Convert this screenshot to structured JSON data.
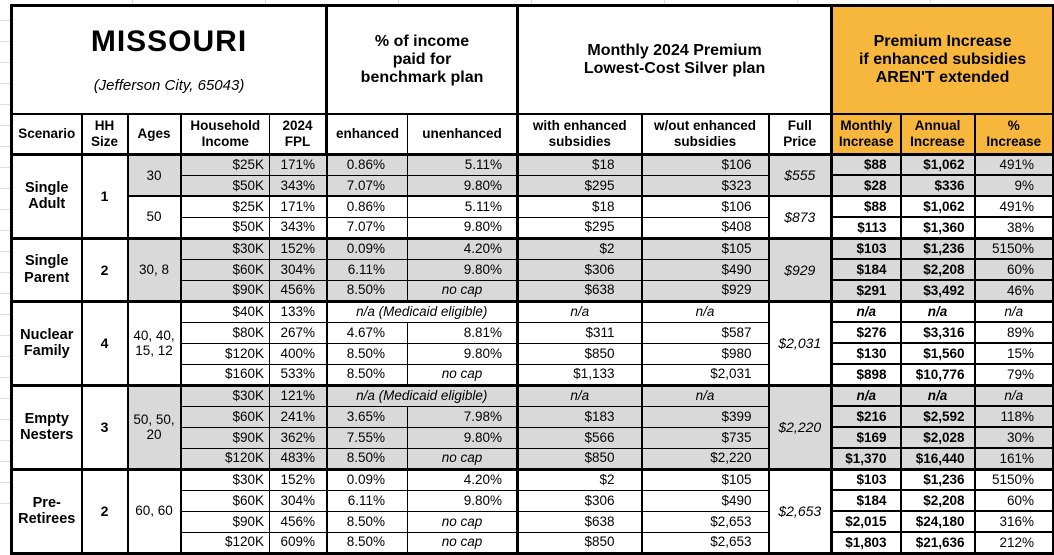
{
  "title": {
    "state": "MISSOURI",
    "location": "(Jefferson City, 65043)"
  },
  "colors": {
    "accent_orange": "#F6B73C",
    "row_shade": "#D9D9D9",
    "border": "#000000"
  },
  "sections": {
    "benchmark": "% of income\npaid for\nbenchmark plan",
    "premium": "Monthly 2024 Premium\nLowest-Cost Silver plan",
    "increase": "Premium Increase\nif enhanced subsidies\nAREN'T extended"
  },
  "columns": {
    "scenario": "Scenario",
    "hh_size": "HH\nSize",
    "ages": "Ages",
    "income": "Household\nIncome",
    "fpl": "2024\nFPL",
    "enhanced": "enhanced",
    "unenhanced": "unenhanced",
    "with_sub": "with enhanced\nsubsidies",
    "wout_sub": "w/out enhanced\nsubsidies",
    "full_price": "Full\nPrice",
    "monthly": "Monthly\nIncrease",
    "annual": "Annual\nIncrease",
    "pct": "%\nIncrease"
  },
  "chart_data": {
    "type": "table",
    "title": "Missouri (Jefferson City, 65043) — 2024 Marketplace premiums and increases if enhanced subsidies aren't extended",
    "groups": [
      {
        "scenario": "Single\nAdult",
        "hh_size": "1",
        "age_groups": [
          {
            "ages": "30",
            "shaded": true,
            "full_price": "$555",
            "rows": [
              {
                "income": "$25K",
                "fpl": "171%",
                "enhanced": "0.86%",
                "unenhanced": "5.11%",
                "with_sub": "$18",
                "wout_sub": "$106",
                "monthly": "$88",
                "annual": "$1,062",
                "pct": "491%"
              },
              {
                "income": "$50K",
                "fpl": "343%",
                "enhanced": "7.07%",
                "unenhanced": "9.80%",
                "with_sub": "$295",
                "wout_sub": "$323",
                "monthly": "$28",
                "annual": "$336",
                "pct": "9%"
              }
            ]
          },
          {
            "ages": "50",
            "shaded": false,
            "full_price": "$873",
            "rows": [
              {
                "income": "$25K",
                "fpl": "171%",
                "enhanced": "0.86%",
                "unenhanced": "5.11%",
                "with_sub": "$18",
                "wout_sub": "$106",
                "monthly": "$88",
                "annual": "$1,062",
                "pct": "491%"
              },
              {
                "income": "$50K",
                "fpl": "343%",
                "enhanced": "7.07%",
                "unenhanced": "9.80%",
                "with_sub": "$295",
                "wout_sub": "$408",
                "monthly": "$113",
                "annual": "$1,360",
                "pct": "38%"
              }
            ]
          }
        ]
      },
      {
        "scenario": "Single\nParent",
        "hh_size": "2",
        "age_groups": [
          {
            "ages": "30, 8",
            "shaded": true,
            "full_price": "$929",
            "rows": [
              {
                "income": "$30K",
                "fpl": "152%",
                "enhanced": "0.09%",
                "unenhanced": "4.20%",
                "with_sub": "$2",
                "wout_sub": "$105",
                "monthly": "$103",
                "annual": "$1,236",
                "pct": "5150%"
              },
              {
                "income": "$60K",
                "fpl": "304%",
                "enhanced": "6.11%",
                "unenhanced": "9.80%",
                "with_sub": "$306",
                "wout_sub": "$490",
                "monthly": "$184",
                "annual": "$2,208",
                "pct": "60%"
              },
              {
                "income": "$90K",
                "fpl": "456%",
                "enhanced": "8.50%",
                "unenhanced": "no cap",
                "with_sub": "$638",
                "wout_sub": "$929",
                "monthly": "$291",
                "annual": "$3,492",
                "pct": "46%"
              }
            ]
          }
        ]
      },
      {
        "scenario": "Nuclear\nFamily",
        "hh_size": "4",
        "age_groups": [
          {
            "ages": "40, 40,\n15, 12",
            "shaded": false,
            "full_price": "$2,031",
            "rows": [
              {
                "income": "$40K",
                "fpl": "133%",
                "note": "n/a (Medicaid eligible)",
                "with_sub": "n/a",
                "wout_sub": "n/a",
                "monthly": "n/a",
                "annual": "n/a",
                "pct": "n/a"
              },
              {
                "income": "$80K",
                "fpl": "267%",
                "enhanced": "4.67%",
                "unenhanced": "8.81%",
                "with_sub": "$311",
                "wout_sub": "$587",
                "monthly": "$276",
                "annual": "$3,316",
                "pct": "89%"
              },
              {
                "income": "$120K",
                "fpl": "400%",
                "enhanced": "8.50%",
                "unenhanced": "9.80%",
                "with_sub": "$850",
                "wout_sub": "$980",
                "monthly": "$130",
                "annual": "$1,560",
                "pct": "15%"
              },
              {
                "income": "$160K",
                "fpl": "533%",
                "enhanced": "8.50%",
                "unenhanced": "no cap",
                "with_sub": "$1,133",
                "wout_sub": "$2,031",
                "monthly": "$898",
                "annual": "$10,776",
                "pct": "79%"
              }
            ]
          }
        ]
      },
      {
        "scenario": "Empty\nNesters",
        "hh_size": "3",
        "age_groups": [
          {
            "ages": "50, 50,\n20",
            "shaded": true,
            "full_price": "$2,220",
            "rows": [
              {
                "income": "$30K",
                "fpl": "121%",
                "note": "n/a (Medicaid eligible)",
                "with_sub": "n/a",
                "wout_sub": "n/a",
                "monthly": "n/a",
                "annual": "n/a",
                "pct": "n/a"
              },
              {
                "income": "$60K",
                "fpl": "241%",
                "enhanced": "3.65%",
                "unenhanced": "7.98%",
                "with_sub": "$183",
                "wout_sub": "$399",
                "monthly": "$216",
                "annual": "$2,592",
                "pct": "118%"
              },
              {
                "income": "$90K",
                "fpl": "362%",
                "enhanced": "7.55%",
                "unenhanced": "9.80%",
                "with_sub": "$566",
                "wout_sub": "$735",
                "monthly": "$169",
                "annual": "$2,028",
                "pct": "30%"
              },
              {
                "income": "$120K",
                "fpl": "483%",
                "enhanced": "8.50%",
                "unenhanced": "no cap",
                "with_sub": "$850",
                "wout_sub": "$2,220",
                "monthly": "$1,370",
                "annual": "$16,440",
                "pct": "161%"
              }
            ]
          }
        ]
      },
      {
        "scenario": "Pre-\nRetirees",
        "hh_size": "2",
        "age_groups": [
          {
            "ages": "60, 60",
            "shaded": false,
            "full_price": "$2,653",
            "rows": [
              {
                "income": "$30K",
                "fpl": "152%",
                "enhanced": "0.09%",
                "unenhanced": "4.20%",
                "with_sub": "$2",
                "wout_sub": "$105",
                "monthly": "$103",
                "annual": "$1,236",
                "pct": "5150%"
              },
              {
                "income": "$60K",
                "fpl": "304%",
                "enhanced": "6.11%",
                "unenhanced": "9.80%",
                "with_sub": "$306",
                "wout_sub": "$490",
                "monthly": "$184",
                "annual": "$2,208",
                "pct": "60%"
              },
              {
                "income": "$90K",
                "fpl": "456%",
                "enhanced": "8.50%",
                "unenhanced": "no cap",
                "with_sub": "$638",
                "wout_sub": "$2,653",
                "monthly": "$2,015",
                "annual": "$24,180",
                "pct": "316%"
              },
              {
                "income": "$120K",
                "fpl": "609%",
                "enhanced": "8.50%",
                "unenhanced": "no cap",
                "with_sub": "$850",
                "wout_sub": "$2,653",
                "monthly": "$1,803",
                "annual": "$21,636",
                "pct": "212%"
              }
            ]
          }
        ]
      }
    ]
  }
}
